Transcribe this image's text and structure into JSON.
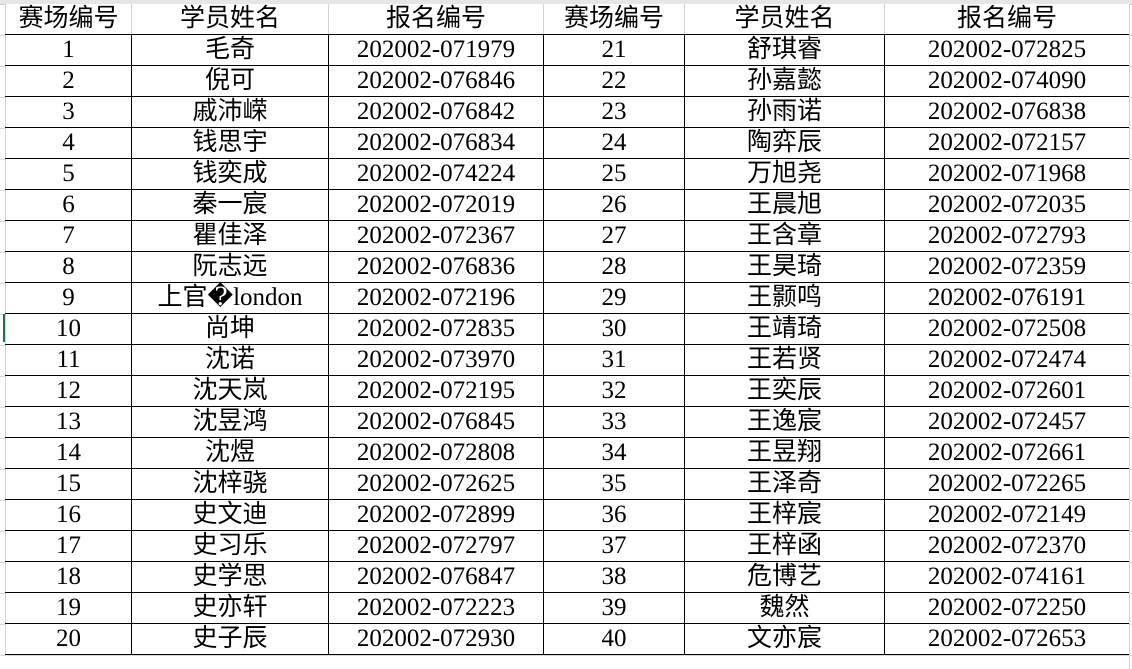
{
  "headers": [
    "赛场编号",
    "学员姓名",
    "报名编号",
    "赛场编号",
    "学员姓名",
    "报名编号"
  ],
  "rows": [
    [
      "1",
      "毛奇",
      "202002-071979",
      "21",
      "舒琪睿",
      "202002-072825"
    ],
    [
      "2",
      "倪可",
      "202002-076846",
      "22",
      "孙嘉懿",
      "202002-074090"
    ],
    [
      "3",
      "戚沛嵘",
      "202002-076842",
      "23",
      "孙雨诺",
      "202002-076838"
    ],
    [
      "4",
      "钱思宇",
      "202002-076834",
      "24",
      "陶弈辰",
      "202002-072157"
    ],
    [
      "5",
      "钱奕成",
      "202002-074224",
      "25",
      "万旭尧",
      "202002-071968"
    ],
    [
      "6",
      "秦一宸",
      "202002-072019",
      "26",
      "王晨旭",
      "202002-072035"
    ],
    [
      "7",
      "瞿佳泽",
      "202002-072367",
      "27",
      "王含章",
      "202002-072793"
    ],
    [
      "8",
      "阮志远",
      "202002-076836",
      "28",
      "王昊琦",
      "202002-072359"
    ],
    [
      "9",
      "上官�london",
      "202002-072196",
      "29",
      "王颢鸣",
      "202002-076191"
    ],
    [
      "10",
      "尚坤",
      "202002-072835",
      "30",
      "王靖琦",
      "202002-072508"
    ],
    [
      "11",
      "沈诺",
      "202002-073970",
      "31",
      "王若贤",
      "202002-072474"
    ],
    [
      "12",
      "沈天岚",
      "202002-072195",
      "32",
      "王奕辰",
      "202002-072601"
    ],
    [
      "13",
      "沈昱鸿",
      "202002-076845",
      "33",
      "王逸宸",
      "202002-072457"
    ],
    [
      "14",
      "沈煜",
      "202002-072808",
      "34",
      "王昱翔",
      "202002-072661"
    ],
    [
      "15",
      "沈梓骁",
      "202002-072625",
      "35",
      "王泽奇",
      "202002-072265"
    ],
    [
      "16",
      "史文迪",
      "202002-072899",
      "36",
      "王梓宸",
      "202002-072149"
    ],
    [
      "17",
      "史习乐",
      "202002-072797",
      "37",
      "王梓函",
      "202002-072370"
    ],
    [
      "18",
      "史学思",
      "202002-076847",
      "38",
      "危博艺",
      "202002-074161"
    ],
    [
      "19",
      "史亦轩",
      "202002-072223",
      "39",
      "魏然",
      "202002-072250"
    ],
    [
      "20",
      "史子辰",
      "202002-072930",
      "40",
      "文亦宸",
      "202002-072653"
    ]
  ]
}
